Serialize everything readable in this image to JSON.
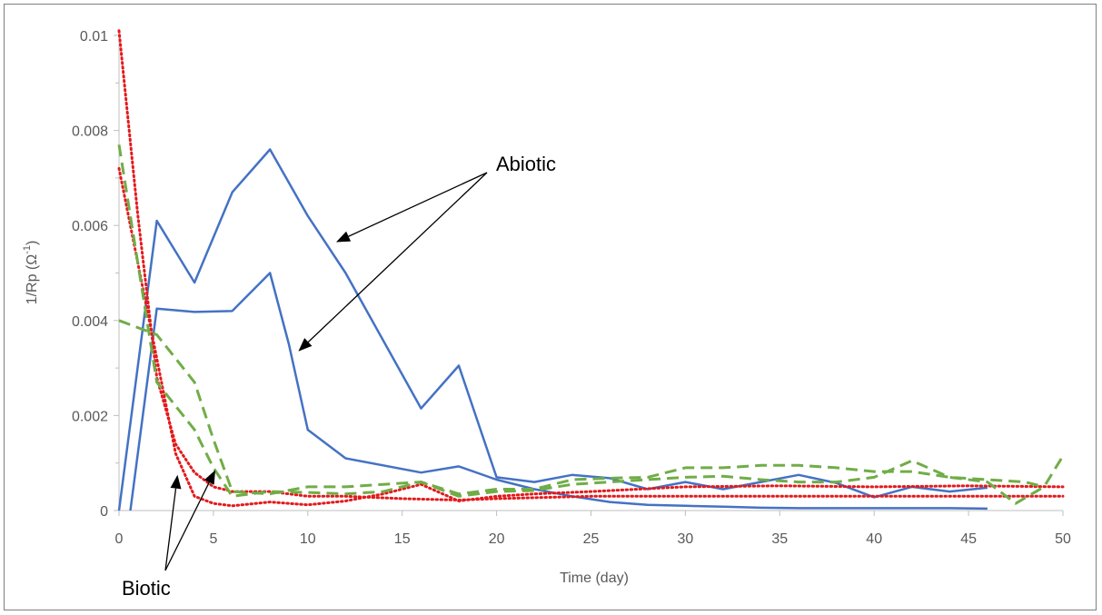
{
  "chart_data": {
    "type": "line",
    "xlabel": "Time (day)",
    "ylabel_main": "1/Rp (Ω",
    "ylabel_sup": "-1",
    "ylabel_close": ")",
    "xlim": [
      0,
      50
    ],
    "ylim": [
      0,
      0.01
    ],
    "x_ticks": [
      0,
      5,
      10,
      15,
      20,
      25,
      30,
      35,
      40,
      45,
      50
    ],
    "x_tick_labels": [
      "0",
      "5",
      "10",
      "15",
      "20",
      "25",
      "30",
      "35",
      "40",
      "45",
      "50"
    ],
    "y_ticks": [
      0,
      0.002,
      0.004,
      0.006,
      0.008,
      0.01
    ],
    "y_tick_labels": [
      "0",
      "0.002",
      "0.004",
      "0.006",
      "0.008",
      "0.01"
    ],
    "grid": false,
    "legend": "none",
    "colors": {
      "abiotic": "#4472C4",
      "biotic_red": "#E31A1C",
      "biotic_green": "#70AD47",
      "axis": "#bfbfbf",
      "arrow": "#000000"
    },
    "series": [
      {
        "style": "solid",
        "color": "#4472C4",
        "x": [
          0,
          2,
          4,
          6,
          8,
          10,
          12,
          16,
          18,
          20,
          22,
          24,
          26,
          28,
          30,
          32,
          34,
          36,
          38,
          40,
          42,
          44,
          46
        ],
        "y": [
          0,
          0.0061,
          0.0048,
          0.0067,
          0.0076,
          0.0062,
          0.005,
          0.00215,
          0.00305,
          0.0007,
          0.0006,
          0.00075,
          0.00068,
          0.00045,
          0.0006,
          0.00045,
          0.0006,
          0.00075,
          0.00058,
          0.00028,
          0.0005,
          0.0004,
          0.00048
        ]
      },
      {
        "style": "solid",
        "color": "#4472C4",
        "x": [
          0.6,
          2,
          4,
          6,
          8,
          9,
          10,
          12,
          16,
          18,
          20,
          22,
          24,
          26,
          28,
          30,
          32,
          34,
          36,
          38,
          40,
          42,
          44,
          46
        ],
        "y": [
          0,
          0.00425,
          0.00418,
          0.0042,
          0.005,
          0.0035,
          0.0017,
          0.0011,
          0.0008,
          0.00093,
          0.00065,
          0.00045,
          0.0003,
          0.00018,
          0.00012,
          0.0001,
          8e-05,
          6e-05,
          5e-05,
          5e-05,
          5e-05,
          5e-05,
          5e-05,
          4e-05
        ]
      },
      {
        "style": "dotted",
        "color": "#E31A1C",
        "x": [
          0,
          1,
          2,
          3,
          4,
          5,
          6,
          8,
          10,
          12,
          15,
          18,
          20,
          25,
          30,
          35,
          40,
          45,
          50
        ],
        "y": [
          0.0101,
          0.0062,
          0.0028,
          0.0014,
          0.0008,
          0.0005,
          0.0004,
          0.0004,
          0.0003,
          0.0003,
          0.00025,
          0.00022,
          0.00025,
          0.0003,
          0.0003,
          0.0003,
          0.0003,
          0.0003,
          0.0003
        ]
      },
      {
        "style": "dotted",
        "color": "#E31A1C",
        "x": [
          0,
          1,
          2,
          3,
          4,
          5,
          6,
          8,
          10,
          12,
          14,
          16,
          18,
          20,
          22,
          25,
          30,
          35,
          40,
          45,
          50
        ],
        "y": [
          0.0072,
          0.0052,
          0.0032,
          0.0012,
          0.0003,
          0.00015,
          0.0001,
          0.00018,
          0.00012,
          0.0002,
          0.00035,
          0.00055,
          0.0002,
          0.0003,
          0.00035,
          0.0004,
          0.0005,
          0.00052,
          0.0005,
          0.00052,
          0.0005
        ]
      },
      {
        "style": "dashed",
        "color": "#70AD47",
        "x": [
          0,
          2,
          4,
          5,
          6,
          8,
          10,
          12,
          14,
          16,
          18,
          20,
          22,
          24,
          26,
          28,
          30,
          32,
          34,
          36,
          38,
          40,
          42,
          44,
          46,
          48,
          49
        ],
        "y": [
          0.004,
          0.0037,
          0.0027,
          0.0015,
          0.0004,
          0.00035,
          0.0005,
          0.0005,
          0.00055,
          0.0006,
          0.00035,
          0.00045,
          0.00045,
          0.00065,
          0.00068,
          0.0007,
          0.0009,
          0.0009,
          0.00095,
          0.00095,
          0.0009,
          0.00082,
          0.00082,
          0.0007,
          0.00065,
          0.0006,
          0.0005
        ]
      },
      {
        "style": "dashed",
        "color": "#70AD47",
        "x": [
          0,
          2,
          4,
          5,
          6,
          8,
          10,
          12,
          14,
          16,
          18,
          20,
          22,
          24,
          26,
          28,
          30,
          32,
          34,
          36,
          38,
          40,
          42,
          44,
          46,
          47.5,
          49,
          50
        ],
        "y": [
          0.0077,
          0.0027,
          0.0017,
          0.0009,
          0.0003,
          0.0004,
          0.00038,
          0.00035,
          0.0004,
          0.0006,
          0.0003,
          0.0004,
          0.00042,
          0.00055,
          0.0006,
          0.00065,
          0.0007,
          0.00072,
          0.00065,
          0.0006,
          0.0006,
          0.0007,
          0.00105,
          0.0007,
          0.0006,
          0.00015,
          0.0005,
          0.00115
        ]
      }
    ],
    "annotations": [
      {
        "text": "Abiotic",
        "arrows_to": [
          [
            11.5,
            0.00565
          ],
          [
            9.5,
            0.00335
          ]
        ]
      },
      {
        "text": "Biotic",
        "arrows_to": [
          [
            3.1,
            0.00075
          ],
          [
            5.1,
            0.00085
          ]
        ]
      }
    ]
  }
}
